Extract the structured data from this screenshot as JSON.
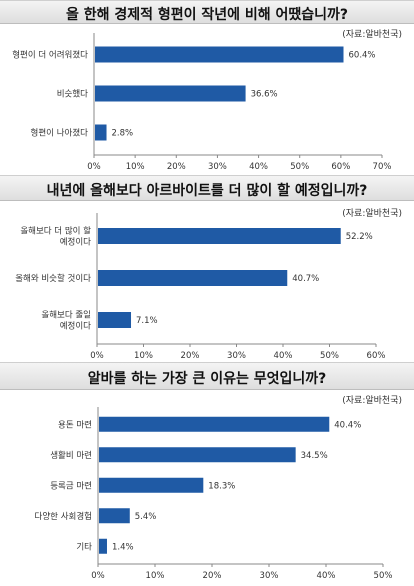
{
  "chart_data": [
    {
      "type": "bar",
      "orientation": "horizontal",
      "title": "올 한해 경제적 형편이 작년에 비해 어땠습니까?",
      "source": "(자료:알바천국)",
      "categories": [
        [
          "형편이 더 어려워졌다"
        ],
        [
          "비슷했다"
        ],
        [
          "형편이 나아졌다"
        ]
      ],
      "values": [
        60.4,
        36.6,
        2.8
      ],
      "value_labels": [
        "60.4%",
        "36.6%",
        "2.8%"
      ],
      "xlim": [
        0,
        70
      ],
      "ticks": [
        "0%",
        "10%",
        "20%",
        "30%",
        "40%",
        "50%",
        "60%",
        "70%"
      ],
      "bar_color": "#1f5aa5"
    },
    {
      "type": "bar",
      "orientation": "horizontal",
      "title": "내년에 올해보다 아르바이트를 더 많이 할 예정입니까?",
      "source": "(자료:알바천국)",
      "categories": [
        [
          "올해보다 더 많이 할",
          "예정이다"
        ],
        [
          "올해와 비슷할 것이다"
        ],
        [
          "올해보다 줄일",
          "예정이다"
        ]
      ],
      "values": [
        52.2,
        40.7,
        7.1
      ],
      "value_labels": [
        "52.2%",
        "40.7%",
        "7.1%"
      ],
      "xlim": [
        0,
        60
      ],
      "ticks": [
        "0%",
        "10%",
        "20%",
        "30%",
        "40%",
        "50%",
        "60%"
      ],
      "bar_color": "#1f5aa5"
    },
    {
      "type": "bar",
      "orientation": "horizontal",
      "title": "알바를 하는 가장 큰 이유는 무엇입니까?",
      "source": "(자료:알바천국)",
      "categories": [
        [
          "용돈 마련"
        ],
        [
          "생활비 마련"
        ],
        [
          "등록금 마련"
        ],
        [
          "다양한 사회경험"
        ],
        [
          "기타"
        ]
      ],
      "values": [
        40.4,
        34.5,
        18.3,
        5.4,
        1.4
      ],
      "value_labels": [
        "40.4%",
        "34.5%",
        "18.3%",
        "5.4%",
        "1.4%"
      ],
      "xlim": [
        0,
        50
      ],
      "ticks": [
        "0%",
        "10%",
        "20%",
        "30%",
        "40%",
        "50%"
      ],
      "bar_color": "#1f5aa5"
    }
  ]
}
